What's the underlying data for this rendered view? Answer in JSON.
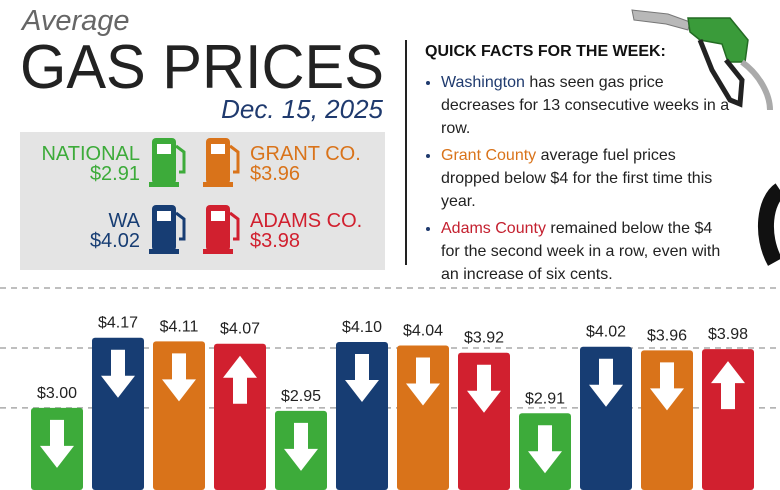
{
  "header": {
    "kicker": "Average",
    "title": "GAS PRICES",
    "date": "Dec. 15, 2025"
  },
  "quick_facts": {
    "title": "QUICK FACTS FOR THE WEEK:",
    "items": [
      {
        "highlight": "Washington",
        "color": "#1f3a6e",
        "text": " has seen gas price decreases for 13 consecutive weeks in a row."
      },
      {
        "highlight": "Grant County",
        "color": "#d9731a",
        "text": " average fuel prices dropped below $4 for the first time this year."
      },
      {
        "highlight": "Adams County",
        "color": "#c4202f",
        "text": " remained below the $4 for the second week in a row, even with an increase of six cents."
      }
    ]
  },
  "chart_data": {
    "type": "bar",
    "series": [
      {
        "name": "NATIONAL",
        "color": "#3dab3a",
        "values": [
          3.0,
          2.95,
          2.91
        ],
        "value_labels": [
          "$3.00",
          "$2.95",
          "$2.91"
        ],
        "arrows": [
          "down",
          "down",
          "down"
        ]
      },
      {
        "name": "WA",
        "color": "#173d73",
        "values": [
          4.17,
          4.1,
          4.02
        ],
        "value_labels": [
          "$4.17",
          "$4.10",
          "$4.02"
        ],
        "arrows": [
          "down",
          "down",
          "down"
        ]
      },
      {
        "name": "GRANT CO.",
        "color": "#d9731a",
        "values": [
          4.11,
          4.04,
          3.96
        ],
        "value_labels": [
          "$4.11",
          "$4.04",
          "$3.96"
        ],
        "arrows": [
          "down",
          "down",
          "down"
        ]
      },
      {
        "name": "ADAMS CO.",
        "color": "#d1202f",
        "values": [
          4.07,
          3.92,
          3.98
        ],
        "value_labels": [
          "$4.07",
          "$3.92",
          "$3.98"
        ],
        "arrows": [
          "up",
          "down",
          "up"
        ]
      }
    ],
    "ylim": [
      1.63,
      5.05
    ],
    "yticks": [
      3,
      4,
      5
    ],
    "grid": true
  }
}
